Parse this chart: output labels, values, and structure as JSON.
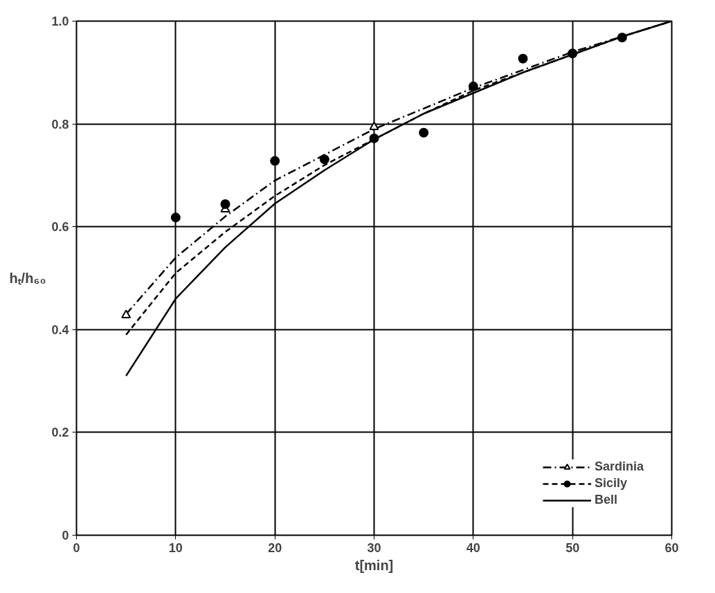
{
  "chart_data": {
    "type": "line",
    "xlabel": "t[min]",
    "ylabel": "hₜ/h₆₀",
    "xlim": [
      0,
      60
    ],
    "ylim": [
      0,
      1.0
    ],
    "xticks": [
      0,
      10,
      20,
      30,
      40,
      50,
      60
    ],
    "yticks": [
      {
        "value": 0,
        "label": "0"
      },
      {
        "value": 0.2,
        "label": "0.2"
      },
      {
        "value": 0.4,
        "label": "0.4"
      },
      {
        "value": 0.6,
        "label": "0.6"
      },
      {
        "value": 0.8,
        "label": "0.8"
      },
      {
        "value": 1.0,
        "label": "1.0"
      }
    ],
    "grid": true,
    "legend": "bottom right",
    "series": [
      {
        "name": "Sardinia",
        "line_style": "dashdot",
        "color": "#000000",
        "x": [
          5,
          10,
          15,
          20,
          25,
          30,
          35,
          40,
          45,
          50,
          55,
          60
        ],
        "values": [
          0.43,
          0.54,
          0.62,
          0.69,
          0.74,
          0.79,
          0.83,
          0.87,
          0.905,
          0.94,
          0.97,
          1.0
        ]
      },
      {
        "type": "scatter",
        "marker": "triangle",
        "color": "#000000",
        "x": [
          5,
          15,
          30
        ],
        "values": [
          0.428,
          0.634,
          0.794
        ]
      },
      {
        "name": "Sicily",
        "line_style": "dashed",
        "color": "#000000",
        "x": [
          5,
          10,
          15,
          20,
          25,
          30,
          35,
          40,
          45,
          50,
          55,
          60
        ],
        "values": [
          0.39,
          0.51,
          0.59,
          0.66,
          0.72,
          0.77,
          0.82,
          0.865,
          0.9,
          0.935,
          0.97,
          1.0
        ]
      },
      {
        "type": "scatter",
        "marker": "circle",
        "color": "#000000",
        "x": [
          10,
          15,
          20,
          25,
          30,
          35,
          40,
          45,
          50,
          55
        ],
        "values": [
          0.618,
          0.644,
          0.728,
          0.731,
          0.772,
          0.783,
          0.873,
          0.927,
          0.937,
          0.968
        ]
      },
      {
        "name": "Bell",
        "line_style": "solid",
        "color": "#000000",
        "x": [
          5,
          10,
          15,
          20,
          25,
          30,
          35,
          40,
          45,
          50,
          55,
          60
        ],
        "values": [
          0.31,
          0.46,
          0.56,
          0.645,
          0.71,
          0.77,
          0.82,
          0.86,
          0.9,
          0.935,
          0.97,
          1.0
        ]
      }
    ]
  }
}
